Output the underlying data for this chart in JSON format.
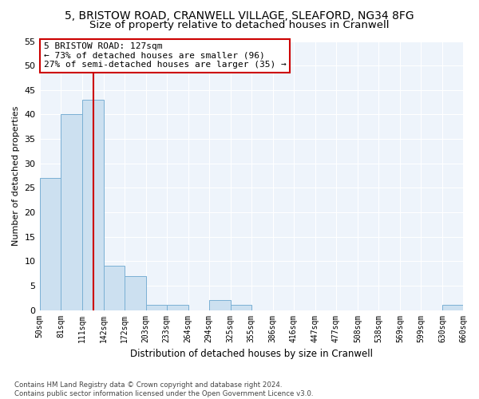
{
  "title1": "5, BRISTOW ROAD, CRANWELL VILLAGE, SLEAFORD, NG34 8FG",
  "title2": "Size of property relative to detached houses in Cranwell",
  "xlabel": "Distribution of detached houses by size in Cranwell",
  "ylabel": "Number of detached properties",
  "bar_color": "#cce0f0",
  "bar_edge_color": "#7ab0d4",
  "bins": [
    50,
    81,
    111,
    142,
    172,
    203,
    233,
    264,
    294,
    325,
    355,
    386,
    416,
    447,
    477,
    508,
    538,
    569,
    599,
    630,
    660
  ],
  "counts": [
    27,
    40,
    43,
    9,
    7,
    1,
    1,
    0,
    2,
    1,
    0,
    0,
    0,
    0,
    0,
    0,
    0,
    0,
    0,
    1
  ],
  "property_size": 127,
  "vline_color": "#cc0000",
  "annotation_line1": "5 BRISTOW ROAD: 127sqm",
  "annotation_line2": "← 73% of detached houses are smaller (96)",
  "annotation_line3": "27% of semi-detached houses are larger (35) →",
  "annotation_box_color": "#ffffff",
  "annotation_box_edge": "#cc0000",
  "ylim": [
    0,
    55
  ],
  "yticks": [
    0,
    5,
    10,
    15,
    20,
    25,
    30,
    35,
    40,
    45,
    50,
    55
  ],
  "footer": "Contains HM Land Registry data © Crown copyright and database right 2024.\nContains public sector information licensed under the Open Government Licence v3.0.",
  "bg_color": "#eef4fb",
  "grid_color": "#ffffff",
  "title1_fontsize": 10,
  "title2_fontsize": 9.5
}
